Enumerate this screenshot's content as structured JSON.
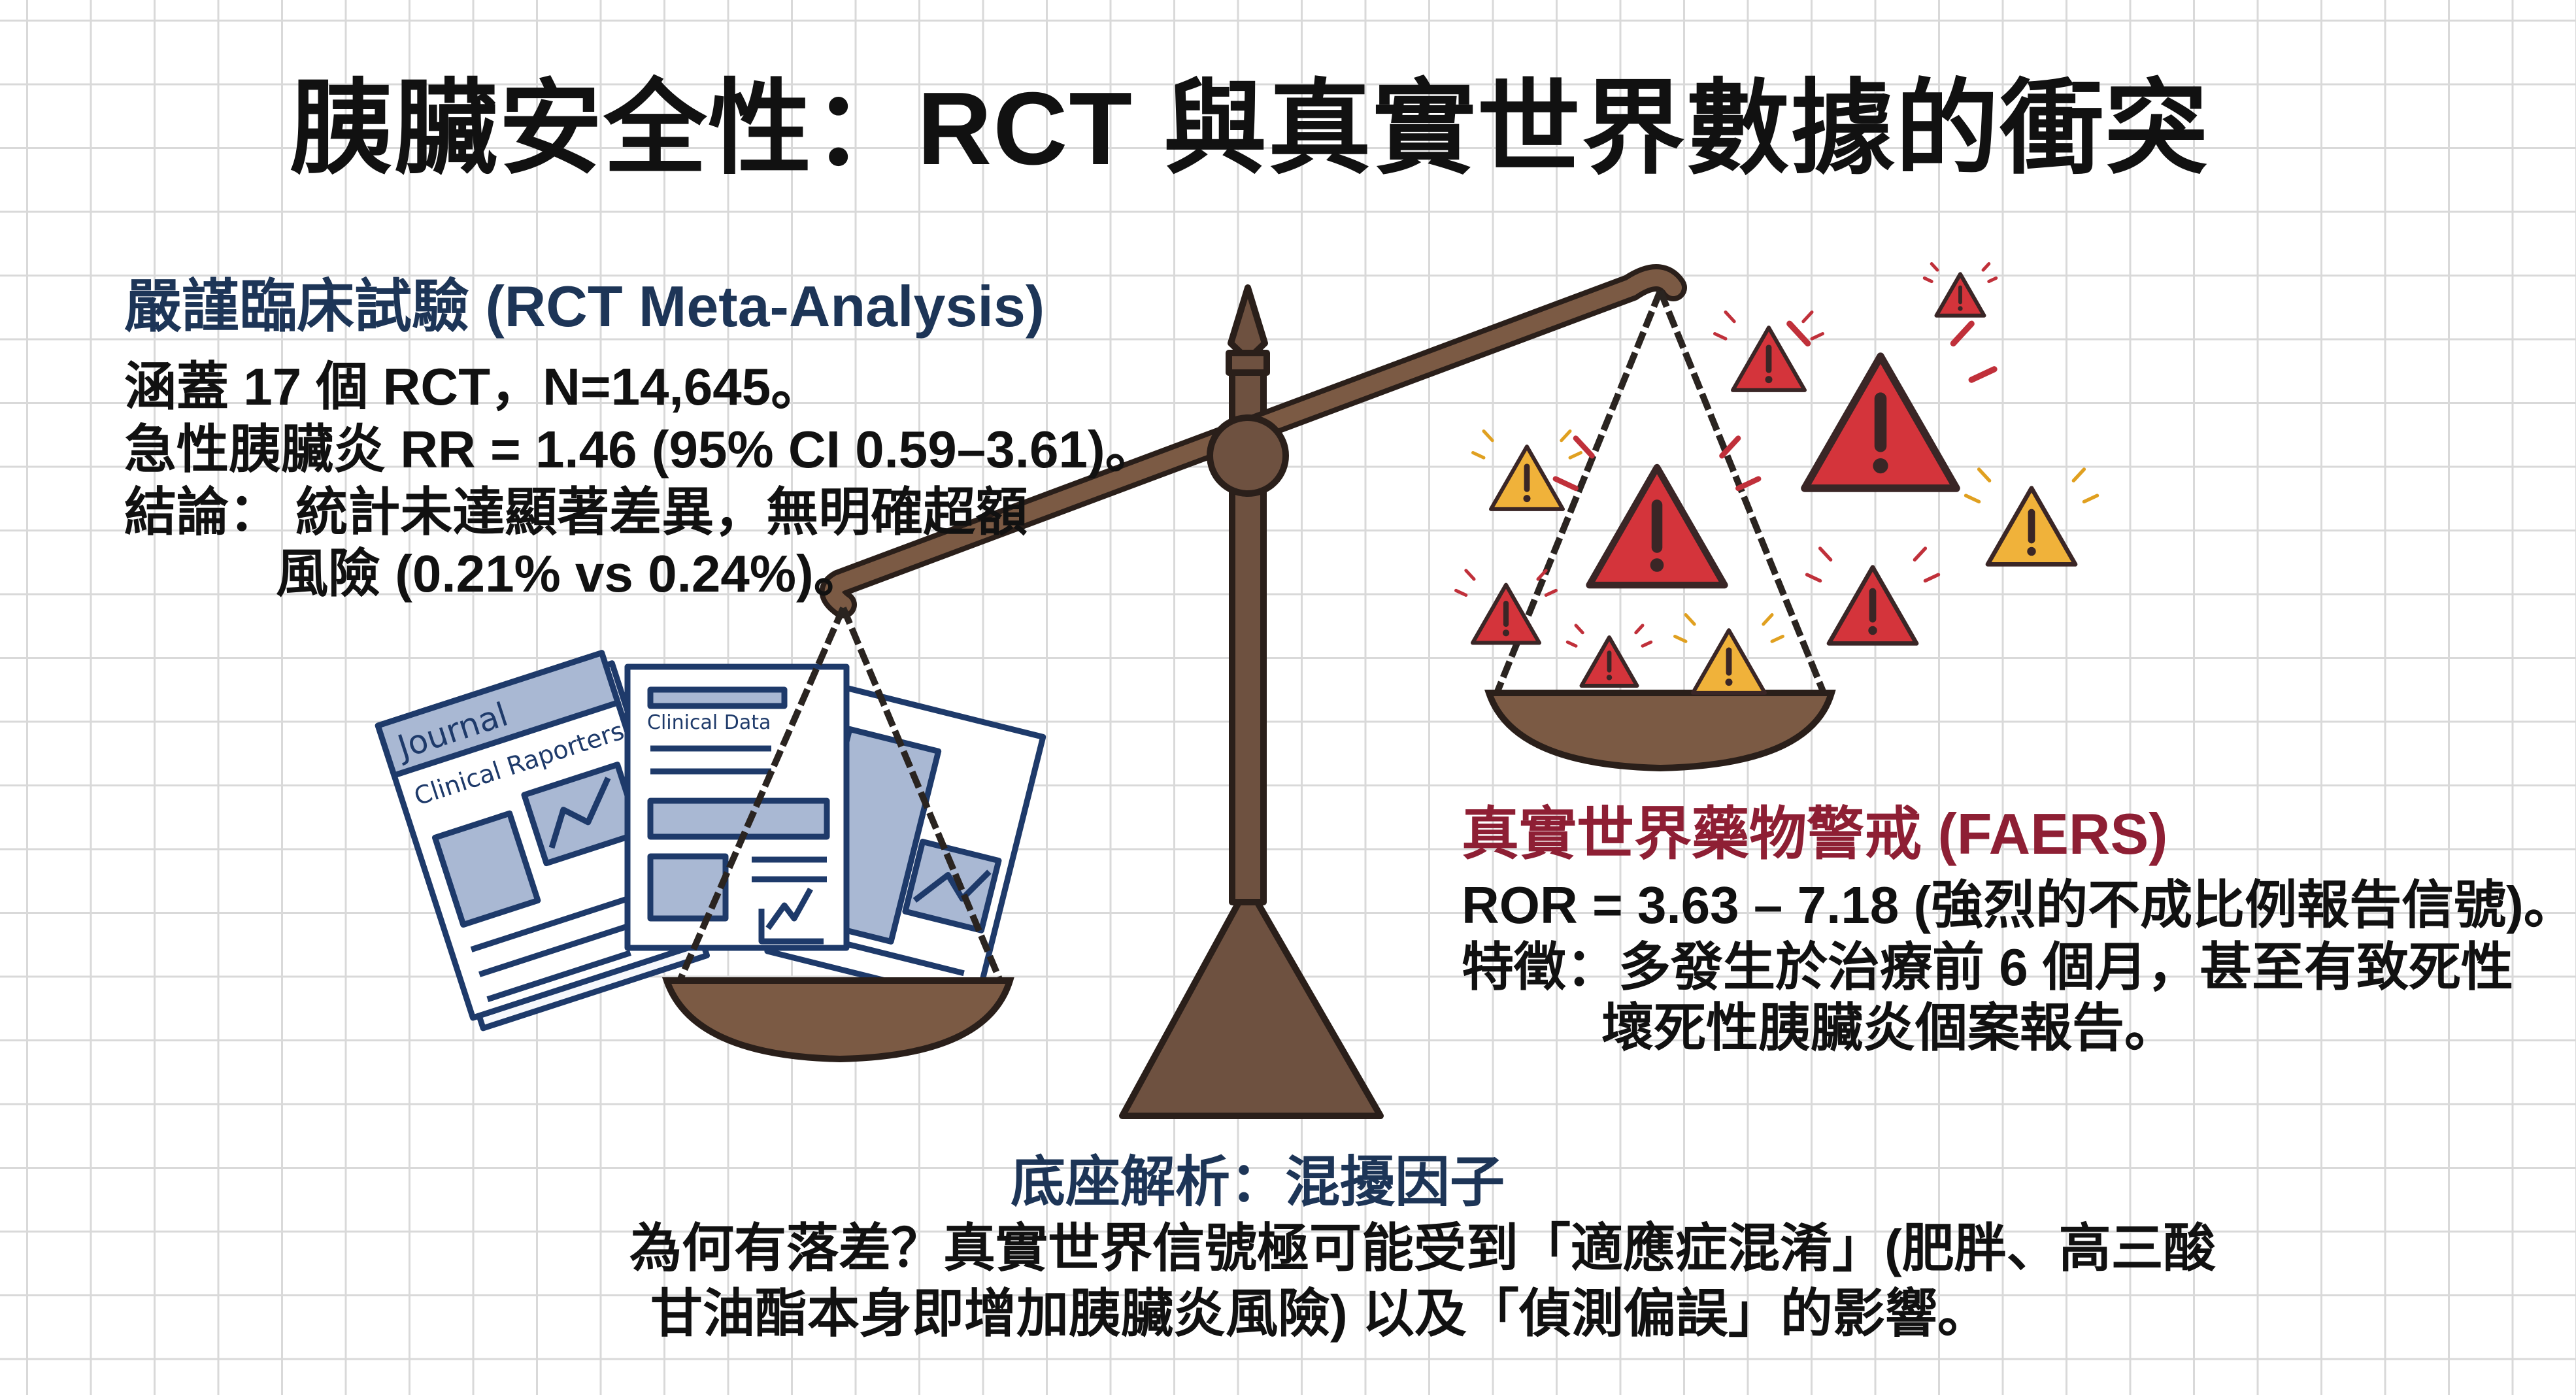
{
  "title": "胰臟安全性：RCT 與真實世界數據的衝突",
  "rct": {
    "heading": "嚴謹臨床試驗 (RCT Meta-Analysis)",
    "lines": [
      "涵蓋 17 個 RCT，N=14,645。",
      "急性胰臟炎 RR = 1.46 (95% CI 0.59–3.61)。",
      "結論： 統計未達顯著差異，無明確超額",
      "風險 (0.21% vs 0.24%)。"
    ]
  },
  "faers": {
    "heading": "真實世界藥物警戒 (FAERS)",
    "lines": [
      "ROR = 3.63 – 7.18 (強烈的不成比例報告信號)。",
      "特徵：多發生於治療前 6 個月，甚至有致死性",
      "壞死性胰臟炎個案報告。"
    ]
  },
  "base": {
    "heading": "底座解析：混擾因子",
    "lines": [
      "為何有落差？真實世界信號極可能受到「適應症混淆」(肥胖、高三酸",
      "甘油酯本身即增加胰臟炎風險) 以及「偵測偏誤」的影響。"
    ]
  },
  "illustration": {
    "documents": {
      "journal": "Journal",
      "reporters": "Clinical Raporters",
      "data": "Clinical Data"
    },
    "icons": [
      "balance-scale-icon",
      "warning-triangle-icon",
      "document-icon"
    ],
    "colors": {
      "navy": "#1d3557",
      "crimson": "#8e1f34",
      "wood": "#7b5a44",
      "warning_red": "#d4343b",
      "warning_yellow": "#f0b23a",
      "paper_blue": "#a9b8d3"
    }
  }
}
